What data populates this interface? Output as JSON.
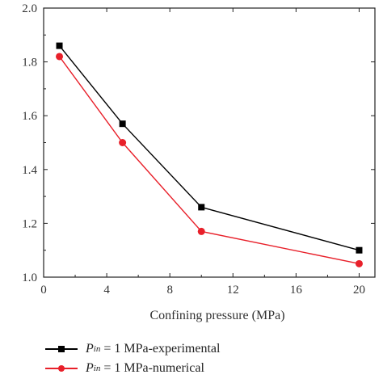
{
  "chart_data": {
    "type": "line",
    "x": [
      1,
      5,
      10,
      20
    ],
    "xlabel": "Confining pressure (MPa)",
    "ylabel": "",
    "xlim": [
      0,
      21
    ],
    "ylim": [
      1.0,
      2.0
    ],
    "x_ticks": [
      "0",
      "4",
      "8",
      "12",
      "16",
      "20"
    ],
    "y_ticks": [
      "1.0",
      "1.2",
      "1.4",
      "1.6",
      "1.8",
      "2.0"
    ],
    "x_tick_values": [
      0,
      4,
      8,
      12,
      16,
      20
    ],
    "y_tick_values": [
      1.0,
      1.2,
      1.4,
      1.6,
      1.8,
      2.0
    ],
    "grid": false,
    "legend_position": "bottom",
    "series": [
      {
        "name": "P_in = 1 MPa-experimental",
        "legend_var": "P",
        "legend_sub": "in",
        "legend_rest": "= 1 MPa-experimental",
        "values": [
          1.86,
          1.57,
          1.26,
          1.1
        ],
        "color": "#000000",
        "marker": "square"
      },
      {
        "name": "P_in = 1 MPa-numerical",
        "legend_var": "P",
        "legend_sub": "in",
        "legend_rest": "= 1 MPa-numerical",
        "values": [
          1.82,
          1.5,
          1.17,
          1.05
        ],
        "color": "#e8202a",
        "marker": "circle"
      }
    ]
  }
}
